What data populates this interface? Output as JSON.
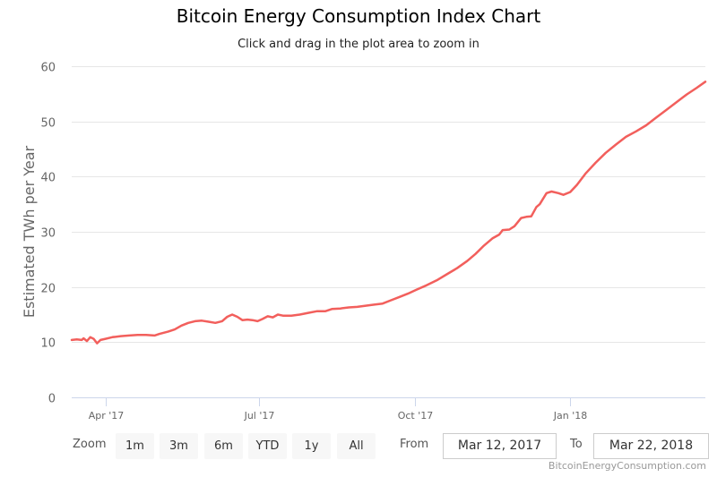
{
  "title": "Bitcoin Energy Consumption Index Chart",
  "subtitle": "Click and drag in the plot area to zoom in",
  "range_selector": {
    "zoom_label": "Zoom",
    "buttons": [
      "1m",
      "3m",
      "6m",
      "YTD",
      "1y",
      "All"
    ],
    "from_label": "From",
    "from_value": "Mar 12, 2017",
    "to_label": "To",
    "to_value": "Mar 22, 2018"
  },
  "credit": "BitcoinEnergyConsumption.com",
  "chart_data": {
    "type": "line",
    "title": "Bitcoin Energy Consumption Index Chart",
    "subtitle": "Click and drag in the plot area to zoom in",
    "xlabel": "",
    "ylabel": "Estimated TWh per Year",
    "ylim": [
      0,
      60
    ],
    "yticks": [
      0,
      10,
      20,
      30,
      40,
      50,
      60
    ],
    "xlim": [
      "2017-03-12",
      "2018-03-22"
    ],
    "xticks": [
      {
        "date": "2017-04-01",
        "label": "Apr '17"
      },
      {
        "date": "2017-07-01",
        "label": "Jul '17"
      },
      {
        "date": "2017-10-01",
        "label": "Oct '17"
      },
      {
        "date": "2018-01-01",
        "label": "Jan '18"
      }
    ],
    "grid": true,
    "color": "#f25f5c",
    "series": [
      {
        "name": "Estimated TWh per Year",
        "points": [
          [
            "2017-03-12",
            10.4
          ],
          [
            "2017-03-15",
            10.5
          ],
          [
            "2017-03-18",
            10.4
          ],
          [
            "2017-03-19",
            10.7
          ],
          [
            "2017-03-21",
            10.2
          ],
          [
            "2017-03-23",
            10.9
          ],
          [
            "2017-03-25",
            10.6
          ],
          [
            "2017-03-27",
            9.8
          ],
          [
            "2017-03-29",
            10.4
          ],
          [
            "2017-04-01",
            10.6
          ],
          [
            "2017-04-05",
            10.9
          ],
          [
            "2017-04-10",
            11.1
          ],
          [
            "2017-04-15",
            11.2
          ],
          [
            "2017-04-20",
            11.3
          ],
          [
            "2017-04-25",
            11.3
          ],
          [
            "2017-04-30",
            11.2
          ],
          [
            "2017-05-03",
            11.5
          ],
          [
            "2017-05-08",
            11.9
          ],
          [
            "2017-05-12",
            12.3
          ],
          [
            "2017-05-16",
            13.0
          ],
          [
            "2017-05-20",
            13.5
          ],
          [
            "2017-05-24",
            13.8
          ],
          [
            "2017-05-28",
            13.9
          ],
          [
            "2017-06-01",
            13.7
          ],
          [
            "2017-06-05",
            13.5
          ],
          [
            "2017-06-09",
            13.8
          ],
          [
            "2017-06-12",
            14.6
          ],
          [
            "2017-06-15",
            15.0
          ],
          [
            "2017-06-18",
            14.6
          ],
          [
            "2017-06-21",
            14.0
          ],
          [
            "2017-06-24",
            14.1
          ],
          [
            "2017-06-27",
            14.0
          ],
          [
            "2017-06-30",
            13.8
          ],
          [
            "2017-07-03",
            14.2
          ],
          [
            "2017-07-06",
            14.7
          ],
          [
            "2017-07-09",
            14.5
          ],
          [
            "2017-07-12",
            15.0
          ],
          [
            "2017-07-15",
            14.8
          ],
          [
            "2017-07-20",
            14.8
          ],
          [
            "2017-07-25",
            15.0
          ],
          [
            "2017-07-30",
            15.3
          ],
          [
            "2017-08-04",
            15.6
          ],
          [
            "2017-08-09",
            15.6
          ],
          [
            "2017-08-13",
            16.0
          ],
          [
            "2017-08-18",
            16.1
          ],
          [
            "2017-08-23",
            16.3
          ],
          [
            "2017-08-28",
            16.4
          ],
          [
            "2017-09-02",
            16.6
          ],
          [
            "2017-09-07",
            16.8
          ],
          [
            "2017-09-12",
            17.0
          ],
          [
            "2017-09-17",
            17.6
          ],
          [
            "2017-09-22",
            18.2
          ],
          [
            "2017-09-27",
            18.8
          ],
          [
            "2017-10-02",
            19.5
          ],
          [
            "2017-10-08",
            20.3
          ],
          [
            "2017-10-14",
            21.2
          ],
          [
            "2017-10-20",
            22.3
          ],
          [
            "2017-10-26",
            23.4
          ],
          [
            "2017-11-01",
            24.7
          ],
          [
            "2017-11-06",
            26.0
          ],
          [
            "2017-11-11",
            27.5
          ],
          [
            "2017-11-16",
            28.8
          ],
          [
            "2017-11-20",
            29.5
          ],
          [
            "2017-11-22",
            30.3
          ],
          [
            "2017-11-26",
            30.4
          ],
          [
            "2017-11-29",
            31.0
          ],
          [
            "2017-12-03",
            32.5
          ],
          [
            "2017-12-06",
            32.7
          ],
          [
            "2017-12-09",
            32.8
          ],
          [
            "2017-12-12",
            34.5
          ],
          [
            "2017-12-14",
            35.0
          ],
          [
            "2017-12-18",
            37.0
          ],
          [
            "2017-12-21",
            37.3
          ],
          [
            "2017-12-25",
            37.0
          ],
          [
            "2017-12-28",
            36.7
          ],
          [
            "2018-01-01",
            37.2
          ],
          [
            "2018-01-05",
            38.5
          ],
          [
            "2018-01-10",
            40.5
          ],
          [
            "2018-01-16",
            42.5
          ],
          [
            "2018-01-22",
            44.3
          ],
          [
            "2018-01-28",
            45.8
          ],
          [
            "2018-02-03",
            47.2
          ],
          [
            "2018-02-09",
            48.2
          ],
          [
            "2018-02-15",
            49.3
          ],
          [
            "2018-02-21",
            50.7
          ],
          [
            "2018-02-27",
            52.1
          ],
          [
            "2018-03-05",
            53.5
          ],
          [
            "2018-03-11",
            54.9
          ],
          [
            "2018-03-17",
            56.1
          ],
          [
            "2018-03-22",
            57.2
          ]
        ]
      }
    ]
  }
}
